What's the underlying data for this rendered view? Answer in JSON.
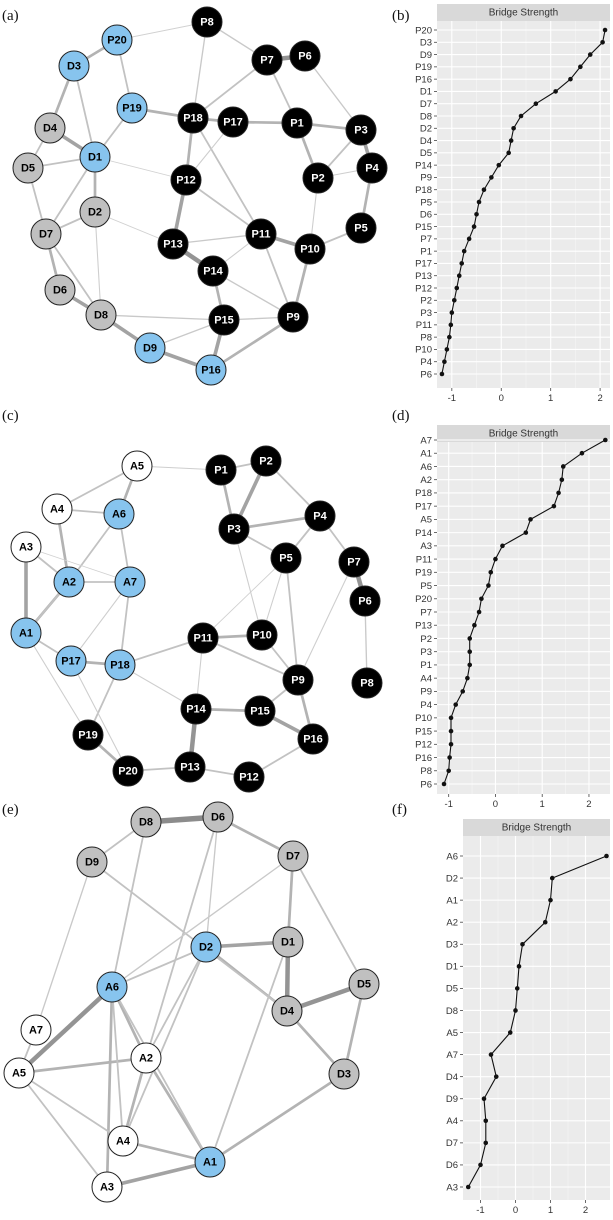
{
  "panels": {
    "a": "(a)",
    "b": "(b)",
    "c": "(c)",
    "d": "(d)",
    "e": "(e)",
    "f": "(f)"
  },
  "colors": {
    "P": "#000000",
    "D": "#c0c0c0",
    "A": "#ffffff",
    "bridge": "#87c4ee",
    "plot_bg": "#ebebeb",
    "strip_bg": "#d9d9d9"
  },
  "networks": [
    {
      "id": "a",
      "nodes": [
        {
          "id": "P20",
          "g": "bridge"
        },
        {
          "id": "D3",
          "g": "bridge"
        },
        {
          "id": "P8",
          "g": "P"
        },
        {
          "id": "P7",
          "g": "P"
        },
        {
          "id": "P6",
          "g": "P"
        },
        {
          "id": "D4",
          "g": "D"
        },
        {
          "id": "P19",
          "g": "bridge"
        },
        {
          "id": "P18",
          "g": "P"
        },
        {
          "id": "P17",
          "g": "P"
        },
        {
          "id": "P1",
          "g": "P"
        },
        {
          "id": "P3",
          "g": "P"
        },
        {
          "id": "D5",
          "g": "D"
        },
        {
          "id": "D1",
          "g": "bridge"
        },
        {
          "id": "P2",
          "g": "P"
        },
        {
          "id": "P4",
          "g": "P"
        },
        {
          "id": "P12",
          "g": "P"
        },
        {
          "id": "D2",
          "g": "D"
        },
        {
          "id": "D7",
          "g": "D"
        },
        {
          "id": "P5",
          "g": "P"
        },
        {
          "id": "P13",
          "g": "P"
        },
        {
          "id": "P11",
          "g": "P"
        },
        {
          "id": "P10",
          "g": "P"
        },
        {
          "id": "P14",
          "g": "P"
        },
        {
          "id": "D6",
          "g": "D"
        },
        {
          "id": "D8",
          "g": "D"
        },
        {
          "id": "P15",
          "g": "P"
        },
        {
          "id": "P9",
          "g": "P"
        },
        {
          "id": "D9",
          "g": "bridge"
        },
        {
          "id": "P16",
          "g": "bridge"
        }
      ]
    },
    {
      "id": "c",
      "nodes": [
        {
          "id": "A5",
          "g": "A"
        },
        {
          "id": "P2",
          "g": "P"
        },
        {
          "id": "P1",
          "g": "P"
        },
        {
          "id": "A4",
          "g": "A"
        },
        {
          "id": "A6",
          "g": "bridge"
        },
        {
          "id": "P4",
          "g": "P"
        },
        {
          "id": "P3",
          "g": "P"
        },
        {
          "id": "A3",
          "g": "A"
        },
        {
          "id": "P5",
          "g": "P"
        },
        {
          "id": "A2",
          "g": "bridge"
        },
        {
          "id": "A7",
          "g": "bridge"
        },
        {
          "id": "P7",
          "g": "P"
        },
        {
          "id": "A1",
          "g": "bridge"
        },
        {
          "id": "P6",
          "g": "P"
        },
        {
          "id": "P11",
          "g": "P"
        },
        {
          "id": "P10",
          "g": "P"
        },
        {
          "id": "P17",
          "g": "bridge"
        },
        {
          "id": "P18",
          "g": "bridge"
        },
        {
          "id": "P9",
          "g": "P"
        },
        {
          "id": "P8",
          "g": "P"
        },
        {
          "id": "P14",
          "g": "P"
        },
        {
          "id": "P15",
          "g": "P"
        },
        {
          "id": "P19",
          "g": "P"
        },
        {
          "id": "P16",
          "g": "P"
        },
        {
          "id": "P20",
          "g": "P"
        },
        {
          "id": "P13",
          "g": "P"
        },
        {
          "id": "P12",
          "g": "P"
        }
      ]
    },
    {
      "id": "e",
      "nodes": [
        {
          "id": "D8",
          "g": "D"
        },
        {
          "id": "D6",
          "g": "D"
        },
        {
          "id": "D9",
          "g": "D"
        },
        {
          "id": "D7",
          "g": "D"
        },
        {
          "id": "D2",
          "g": "bridge"
        },
        {
          "id": "D1",
          "g": "D"
        },
        {
          "id": "A6",
          "g": "bridge"
        },
        {
          "id": "D5",
          "g": "D"
        },
        {
          "id": "D4",
          "g": "D"
        },
        {
          "id": "A7",
          "g": "A"
        },
        {
          "id": "A5",
          "g": "A"
        },
        {
          "id": "A2",
          "g": "A"
        },
        {
          "id": "D3",
          "g": "D"
        },
        {
          "id": "A4",
          "g": "A"
        },
        {
          "id": "A1",
          "g": "bridge"
        },
        {
          "id": "A3",
          "g": "A"
        }
      ]
    }
  ],
  "chart_data": [
    {
      "id": "b",
      "type": "line",
      "title": "Bridge Strength",
      "xlim": [
        -1.3,
        2.2
      ],
      "xticks": [
        -1,
        0,
        1,
        2
      ],
      "categories": [
        "P20",
        "D3",
        "D9",
        "P19",
        "P16",
        "D1",
        "D7",
        "D8",
        "D2",
        "D4",
        "D5",
        "P14",
        "P9",
        "P18",
        "P5",
        "D6",
        "P15",
        "P7",
        "P1",
        "P17",
        "P13",
        "P12",
        "P2",
        "P3",
        "P11",
        "P8",
        "P10",
        "P4",
        "P6"
      ],
      "values": [
        2.1,
        2.05,
        1.8,
        1.6,
        1.4,
        1.1,
        0.7,
        0.4,
        0.25,
        0.2,
        0.15,
        -0.05,
        -0.2,
        -0.35,
        -0.45,
        -0.5,
        -0.55,
        -0.65,
        -0.75,
        -0.8,
        -0.85,
        -0.9,
        -0.95,
        -1.0,
        -1.02,
        -1.05,
        -1.1,
        -1.15,
        -1.2
      ]
    },
    {
      "id": "d",
      "type": "line",
      "title": "Bridge Strength",
      "xlim": [
        -1.25,
        2.45
      ],
      "xticks": [
        -1,
        0,
        1,
        2
      ],
      "categories": [
        "A7",
        "A1",
        "A6",
        "A2",
        "P18",
        "P17",
        "A5",
        "P14",
        "A3",
        "P11",
        "P19",
        "P5",
        "P20",
        "P7",
        "P13",
        "P2",
        "P3",
        "P1",
        "A4",
        "P9",
        "P4",
        "P10",
        "P15",
        "P12",
        "P16",
        "P8",
        "P6"
      ],
      "values": [
        2.35,
        1.85,
        1.45,
        1.42,
        1.35,
        1.25,
        0.75,
        0.65,
        0.15,
        0.0,
        -0.1,
        -0.15,
        -0.3,
        -0.35,
        -0.45,
        -0.55,
        -0.55,
        -0.55,
        -0.6,
        -0.7,
        -0.85,
        -0.95,
        -0.95,
        -0.95,
        -0.98,
        -1.0,
        -1.1
      ]
    },
    {
      "id": "f",
      "type": "line",
      "title": "Bridge Strength",
      "xlim": [
        -1.5,
        2.7
      ],
      "xticks": [
        -1,
        0,
        1,
        2
      ],
      "categories": [
        "A6",
        "D2",
        "A1",
        "A2",
        "D3",
        "D1",
        "D5",
        "D8",
        "A5",
        "A7",
        "D4",
        "D9",
        "A4",
        "D7",
        "D6",
        "A3"
      ],
      "values": [
        2.6,
        1.05,
        1.0,
        0.85,
        0.2,
        0.1,
        0.05,
        0.0,
        -0.15,
        -0.7,
        -0.55,
        -0.9,
        -0.85,
        -0.85,
        -1.0,
        -1.35
      ]
    }
  ]
}
